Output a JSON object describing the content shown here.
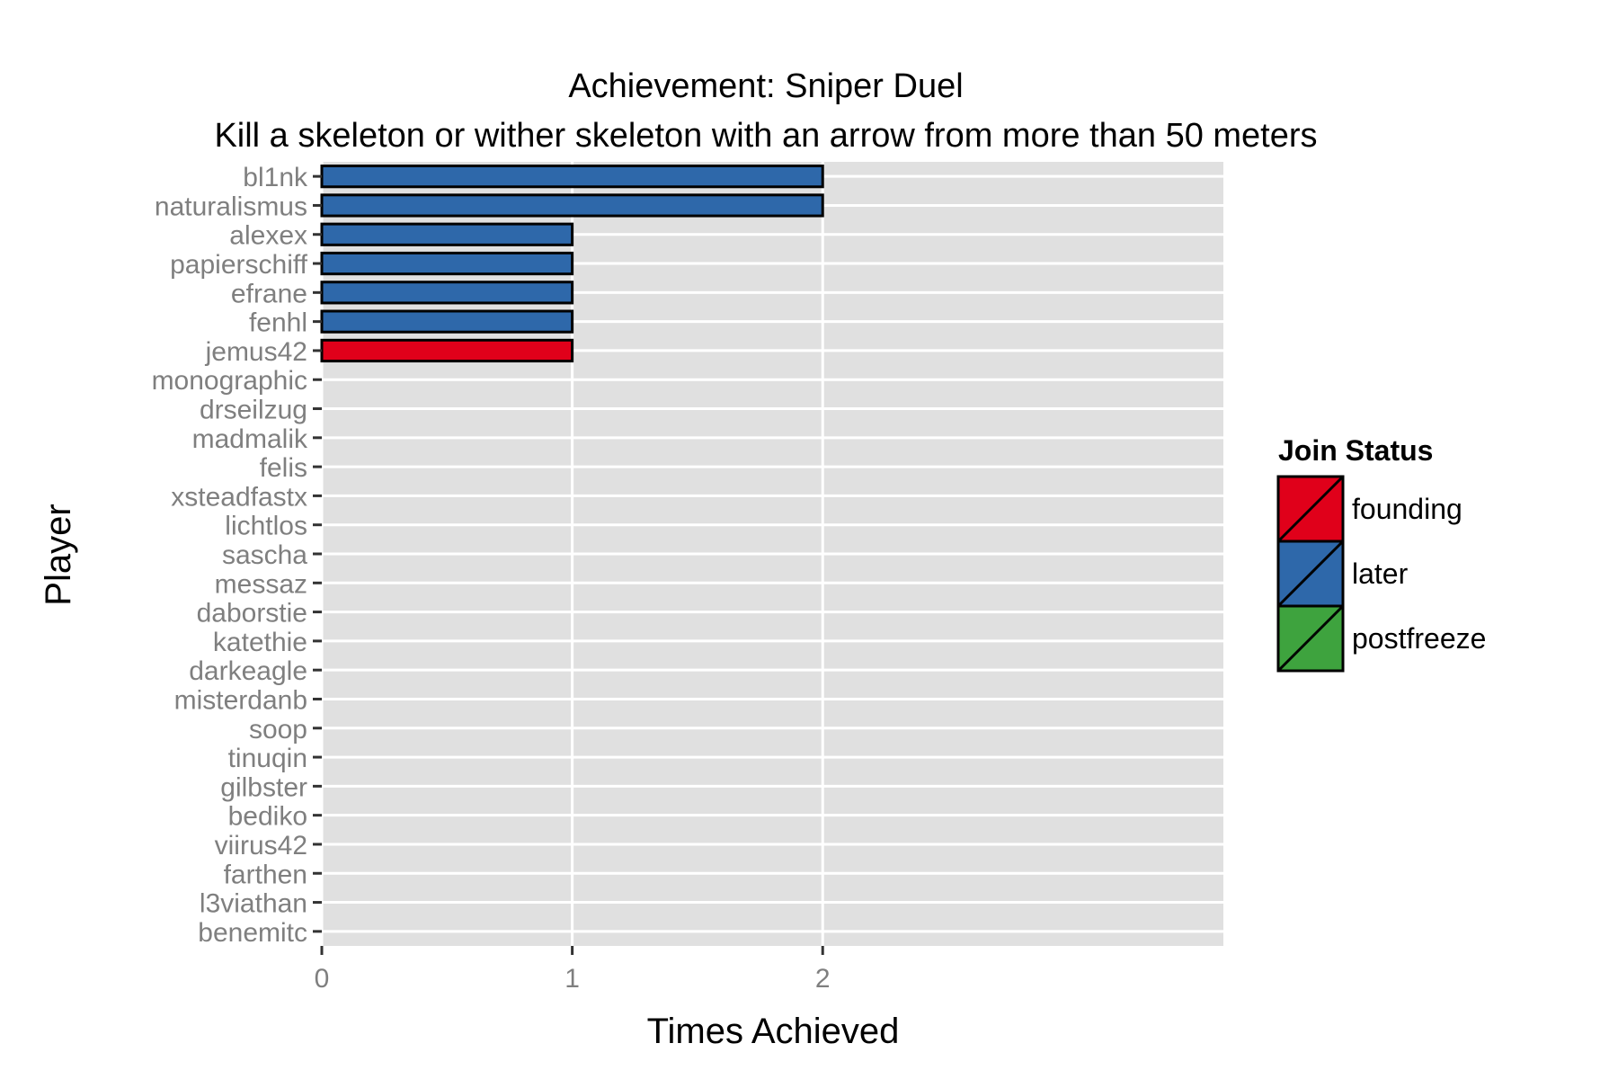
{
  "chart_data": {
    "type": "bar",
    "orientation": "horizontal",
    "title": "Achievement: Sniper Duel",
    "subtitle": "Kill a skeleton or wither skeleton with an arrow from more than 50 meters",
    "xlabel": "Times Achieved",
    "ylabel": "Player",
    "xlim": [
      0,
      3.6
    ],
    "xticks": [
      0,
      1,
      2
    ],
    "grid": true,
    "legend_position": "right",
    "legend": {
      "title": "Join Status",
      "entries": [
        {
          "label": "founding",
          "color": "#e0001a"
        },
        {
          "label": "later",
          "color": "#2e68aa"
        },
        {
          "label": "postfreeze",
          "color": "#3ea33e"
        }
      ]
    },
    "categories": [
      "bl1nk",
      "naturalismus",
      "alexex",
      "papierschiff",
      "efrane",
      "fenhl",
      "jemus42",
      "monographic",
      "drseilzug",
      "madmalik",
      "felis",
      "xsteadfastx",
      "lichtlos",
      "sascha",
      "messaz",
      "daborstie",
      "katethie",
      "darkeagle",
      "misterdanb",
      "soop",
      "tinuqin",
      "gilbster",
      "bediko",
      "viirus42",
      "farthen",
      "l3viathan",
      "benemitc"
    ],
    "values": [
      2,
      2,
      1,
      1,
      1,
      1,
      1,
      0,
      0,
      0,
      0,
      0,
      0,
      0,
      0,
      0,
      0,
      0,
      0,
      0,
      0,
      0,
      0,
      0,
      0,
      0,
      0
    ],
    "status": [
      "later",
      "later",
      "later",
      "later",
      "later",
      "later",
      "founding",
      "later",
      "later",
      "later",
      "later",
      "later",
      "later",
      "later",
      "later",
      "later",
      "later",
      "later",
      "later",
      "later",
      "later",
      "later",
      "later",
      "later",
      "later",
      "later",
      "later"
    ]
  },
  "colors": {
    "panel_background": "#e0e0e0",
    "gridline": "#ffffff",
    "bar_outline": "#000000"
  }
}
